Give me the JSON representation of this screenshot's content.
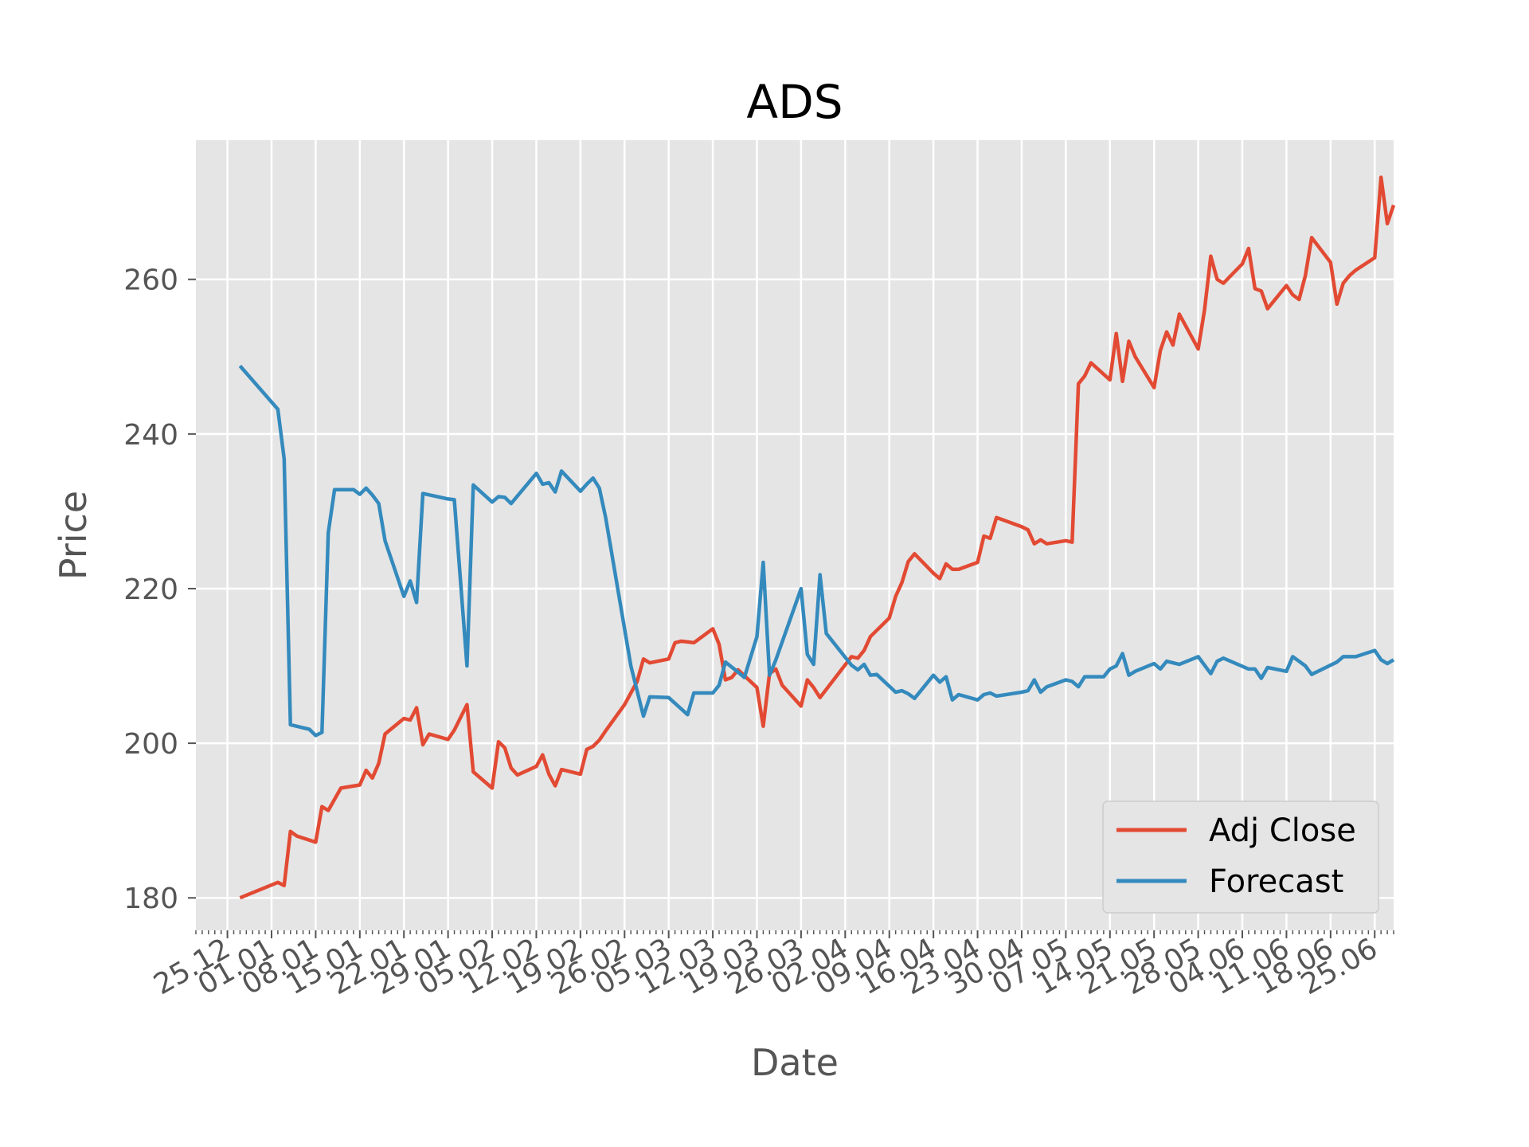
{
  "chart_data": {
    "type": "line",
    "title": "ADS",
    "xlabel": "Date",
    "ylabel": "Price",
    "xlim": [
      "2017-12-20",
      "2018-06-28"
    ],
    "ylim": [
      175.8,
      278.0
    ],
    "x_ticks": [
      "2017-12-25",
      "2018-01-01",
      "2018-01-08",
      "2018-01-15",
      "2018-01-22",
      "2018-01-29",
      "2018-02-05",
      "2018-02-12",
      "2018-02-19",
      "2018-02-26",
      "2018-03-05",
      "2018-03-12",
      "2018-03-19",
      "2018-03-26",
      "2018-04-02",
      "2018-04-09",
      "2018-04-16",
      "2018-04-23",
      "2018-04-30",
      "2018-05-07",
      "2018-05-14",
      "2018-05-21",
      "2018-05-28",
      "2018-06-04",
      "2018-06-11",
      "2018-06-18",
      "2018-06-25"
    ],
    "x_tick_labels": [
      "25.12",
      "01.01",
      "08.01",
      "15.01",
      "22.01",
      "29.01",
      "05.02",
      "12.02",
      "19.02",
      "26.02",
      "05.03",
      "12.03",
      "19.03",
      "26.03",
      "02.04",
      "09.04",
      "16.04",
      "23.04",
      "30.04",
      "07.05",
      "14.05",
      "21.05",
      "28.05",
      "04.06",
      "11.06",
      "18.06",
      "25.06"
    ],
    "y_ticks": [
      180,
      200,
      220,
      240,
      260
    ],
    "grid": true,
    "legend_position": "lower right",
    "series": [
      {
        "name": "Adj Close",
        "color": "#E24A33",
        "points": [
          [
            "2017-12-27",
            180.0
          ],
          [
            "2018-01-02",
            182.0
          ],
          [
            "2018-01-03",
            181.6
          ],
          [
            "2018-01-04",
            188.6
          ],
          [
            "2018-01-05",
            188.0
          ],
          [
            "2018-01-08",
            187.2
          ],
          [
            "2018-01-09",
            191.8
          ],
          [
            "2018-01-10",
            191.3
          ],
          [
            "2018-01-12",
            194.2
          ],
          [
            "2018-01-15",
            194.6
          ],
          [
            "2018-01-16",
            196.5
          ],
          [
            "2018-01-17",
            195.5
          ],
          [
            "2018-01-18",
            197.4
          ],
          [
            "2018-01-19",
            201.2
          ],
          [
            "2018-01-22",
            203.2
          ],
          [
            "2018-01-23",
            203.0
          ],
          [
            "2018-01-24",
            204.6
          ],
          [
            "2018-01-25",
            199.8
          ],
          [
            "2018-01-26",
            201.2
          ],
          [
            "2018-01-29",
            200.5
          ],
          [
            "2018-01-30",
            201.7
          ],
          [
            "2018-02-01",
            205.0
          ],
          [
            "2018-02-02",
            196.3
          ],
          [
            "2018-02-05",
            194.2
          ],
          [
            "2018-02-06",
            200.2
          ],
          [
            "2018-02-07",
            199.4
          ],
          [
            "2018-02-08",
            196.8
          ],
          [
            "2018-02-09",
            195.9
          ],
          [
            "2018-02-12",
            197.0
          ],
          [
            "2018-02-13",
            198.5
          ],
          [
            "2018-02-14",
            196.0
          ],
          [
            "2018-02-15",
            194.5
          ],
          [
            "2018-02-16",
            196.6
          ],
          [
            "2018-02-19",
            196.0
          ],
          [
            "2018-02-20",
            199.2
          ],
          [
            "2018-02-21",
            199.6
          ],
          [
            "2018-02-22",
            200.4
          ],
          [
            "2018-02-23",
            201.6
          ],
          [
            "2018-02-26",
            205.0
          ],
          [
            "2018-02-28",
            208.0
          ],
          [
            "2018-03-01",
            210.9
          ],
          [
            "2018-03-02",
            210.4
          ],
          [
            "2018-03-05",
            210.9
          ],
          [
            "2018-03-06",
            213.0
          ],
          [
            "2018-03-07",
            213.2
          ],
          [
            "2018-03-08",
            213.1
          ],
          [
            "2018-03-09",
            213.0
          ],
          [
            "2018-03-12",
            214.8
          ],
          [
            "2018-03-13",
            212.8
          ],
          [
            "2018-03-14",
            208.2
          ],
          [
            "2018-03-15",
            208.5
          ],
          [
            "2018-03-16",
            209.5
          ],
          [
            "2018-03-19",
            207.2
          ],
          [
            "2018-03-20",
            202.2
          ],
          [
            "2018-03-21",
            209.0
          ],
          [
            "2018-03-22",
            209.6
          ],
          [
            "2018-03-23",
            207.5
          ],
          [
            "2018-03-26",
            204.8
          ],
          [
            "2018-03-27",
            208.2
          ],
          [
            "2018-03-28",
            207.2
          ],
          [
            "2018-03-29",
            205.9
          ],
          [
            "2018-04-03",
            211.2
          ],
          [
            "2018-04-04",
            211.0
          ],
          [
            "2018-04-05",
            212.0
          ],
          [
            "2018-04-06",
            213.8
          ],
          [
            "2018-04-09",
            216.2
          ],
          [
            "2018-04-10",
            219.0
          ],
          [
            "2018-04-11",
            220.8
          ],
          [
            "2018-04-12",
            223.5
          ],
          [
            "2018-04-13",
            224.5
          ],
          [
            "2018-04-16",
            222.0
          ],
          [
            "2018-04-17",
            221.3
          ],
          [
            "2018-04-18",
            223.2
          ],
          [
            "2018-04-19",
            222.5
          ],
          [
            "2018-04-20",
            222.5
          ],
          [
            "2018-04-23",
            223.4
          ],
          [
            "2018-04-24",
            226.8
          ],
          [
            "2018-04-25",
            226.5
          ],
          [
            "2018-04-26",
            229.2
          ],
          [
            "2018-04-30",
            228.0
          ],
          [
            "2018-05-01",
            227.6
          ],
          [
            "2018-05-02",
            225.8
          ],
          [
            "2018-05-03",
            226.3
          ],
          [
            "2018-05-04",
            225.8
          ],
          [
            "2018-05-07",
            226.2
          ],
          [
            "2018-05-08",
            226.0
          ],
          [
            "2018-05-09",
            246.5
          ],
          [
            "2018-05-10",
            247.5
          ],
          [
            "2018-05-11",
            249.2
          ],
          [
            "2018-05-14",
            247.0
          ],
          [
            "2018-05-15",
            253.0
          ],
          [
            "2018-05-16",
            246.8
          ],
          [
            "2018-05-17",
            252.0
          ],
          [
            "2018-05-18",
            250.0
          ],
          [
            "2018-05-21",
            246.0
          ],
          [
            "2018-05-22",
            250.8
          ],
          [
            "2018-05-23",
            253.2
          ],
          [
            "2018-05-24",
            251.5
          ],
          [
            "2018-05-25",
            255.5
          ],
          [
            "2018-05-28",
            251.0
          ],
          [
            "2018-05-29",
            256.0
          ],
          [
            "2018-05-30",
            263.0
          ],
          [
            "2018-05-31",
            260.0
          ],
          [
            "2018-06-01",
            259.5
          ],
          [
            "2018-06-04",
            262.0
          ],
          [
            "2018-06-05",
            264.0
          ],
          [
            "2018-06-06",
            258.8
          ],
          [
            "2018-06-07",
            258.5
          ],
          [
            "2018-06-08",
            256.2
          ],
          [
            "2018-06-11",
            259.2
          ],
          [
            "2018-06-12",
            258.0
          ],
          [
            "2018-06-13",
            257.4
          ],
          [
            "2018-06-14",
            260.5
          ],
          [
            "2018-06-15",
            265.4
          ],
          [
            "2018-06-18",
            262.2
          ],
          [
            "2018-06-19",
            256.8
          ],
          [
            "2018-06-20",
            259.5
          ],
          [
            "2018-06-21",
            260.5
          ],
          [
            "2018-06-22",
            261.2
          ],
          [
            "2018-06-25",
            262.8
          ],
          [
            "2018-06-26",
            273.2
          ],
          [
            "2018-06-27",
            267.2
          ],
          [
            "2018-06-28",
            269.6
          ]
        ]
      },
      {
        "name": "Forecast",
        "color": "#348ABD",
        "points": [
          [
            "2017-12-27",
            248.8
          ],
          [
            "2018-01-02",
            243.2
          ],
          [
            "2018-01-03",
            236.8
          ],
          [
            "2018-01-04",
            202.4
          ],
          [
            "2018-01-07",
            201.8
          ],
          [
            "2018-01-08",
            201.0
          ],
          [
            "2018-01-09",
            201.4
          ],
          [
            "2018-01-10",
            227.2
          ],
          [
            "2018-01-11",
            232.8
          ],
          [
            "2018-01-14",
            232.8
          ],
          [
            "2018-01-15",
            232.2
          ],
          [
            "2018-01-16",
            233.0
          ],
          [
            "2018-01-17",
            232.1
          ],
          [
            "2018-01-18",
            231.0
          ],
          [
            "2018-01-19",
            226.2
          ],
          [
            "2018-01-22",
            219.0
          ],
          [
            "2018-01-23",
            221.0
          ],
          [
            "2018-01-24",
            218.2
          ],
          [
            "2018-01-25",
            232.3
          ],
          [
            "2018-01-29",
            231.6
          ],
          [
            "2018-01-30",
            231.5
          ],
          [
            "2018-02-01",
            210.0
          ],
          [
            "2018-02-02",
            233.4
          ],
          [
            "2018-02-05",
            231.2
          ],
          [
            "2018-02-06",
            231.9
          ],
          [
            "2018-02-07",
            231.8
          ],
          [
            "2018-02-08",
            231.0
          ],
          [
            "2018-02-12",
            234.9
          ],
          [
            "2018-02-13",
            233.5
          ],
          [
            "2018-02-14",
            233.7
          ],
          [
            "2018-02-15",
            232.5
          ],
          [
            "2018-02-16",
            235.2
          ],
          [
            "2018-02-19",
            232.6
          ],
          [
            "2018-02-20",
            233.5
          ],
          [
            "2018-02-21",
            234.3
          ],
          [
            "2018-02-22",
            233.0
          ],
          [
            "2018-02-23",
            229.2
          ],
          [
            "2018-02-27",
            210.0
          ],
          [
            "2018-03-01",
            203.5
          ],
          [
            "2018-03-02",
            206.0
          ],
          [
            "2018-03-05",
            205.9
          ],
          [
            "2018-03-08",
            203.7
          ],
          [
            "2018-03-09",
            206.5
          ],
          [
            "2018-03-12",
            206.5
          ],
          [
            "2018-03-13",
            207.5
          ],
          [
            "2018-03-14",
            210.5
          ],
          [
            "2018-03-16",
            209.2
          ],
          [
            "2018-03-17",
            208.5
          ],
          [
            "2018-03-19",
            213.8
          ],
          [
            "2018-03-20",
            223.4
          ],
          [
            "2018-03-21",
            208.8
          ],
          [
            "2018-03-22",
            210.8
          ],
          [
            "2018-03-26",
            220.0
          ],
          [
            "2018-03-27",
            211.5
          ],
          [
            "2018-03-28",
            210.2
          ],
          [
            "2018-03-29",
            221.8
          ],
          [
            "2018-03-30",
            214.2
          ],
          [
            "2018-04-03",
            210.1
          ],
          [
            "2018-04-04",
            209.5
          ],
          [
            "2018-04-05",
            210.2
          ],
          [
            "2018-04-06",
            208.8
          ],
          [
            "2018-04-07",
            208.9
          ],
          [
            "2018-04-10",
            206.6
          ],
          [
            "2018-04-11",
            206.8
          ],
          [
            "2018-04-12",
            206.4
          ],
          [
            "2018-04-13",
            205.8
          ],
          [
            "2018-04-16",
            208.8
          ],
          [
            "2018-04-17",
            207.9
          ],
          [
            "2018-04-18",
            208.6
          ],
          [
            "2018-04-19",
            205.6
          ],
          [
            "2018-04-20",
            206.3
          ],
          [
            "2018-04-23",
            205.6
          ],
          [
            "2018-04-24",
            206.3
          ],
          [
            "2018-04-25",
            206.5
          ],
          [
            "2018-04-26",
            206.1
          ],
          [
            "2018-04-30",
            206.6
          ],
          [
            "2018-05-01",
            206.8
          ],
          [
            "2018-05-02",
            208.2
          ],
          [
            "2018-05-03",
            206.6
          ],
          [
            "2018-05-04",
            207.3
          ],
          [
            "2018-05-07",
            208.2
          ],
          [
            "2018-05-08",
            208.0
          ],
          [
            "2018-05-09",
            207.3
          ],
          [
            "2018-05-10",
            208.6
          ],
          [
            "2018-05-13",
            208.6
          ],
          [
            "2018-05-14",
            209.6
          ],
          [
            "2018-05-15",
            210.0
          ],
          [
            "2018-05-16",
            211.6
          ],
          [
            "2018-05-17",
            208.8
          ],
          [
            "2018-05-18",
            209.3
          ],
          [
            "2018-05-21",
            210.3
          ],
          [
            "2018-05-22",
            209.6
          ],
          [
            "2018-05-23",
            210.6
          ],
          [
            "2018-05-25",
            210.2
          ],
          [
            "2018-05-28",
            211.2
          ],
          [
            "2018-05-30",
            209.0
          ],
          [
            "2018-05-31",
            210.6
          ],
          [
            "2018-06-01",
            211.0
          ],
          [
            "2018-06-05",
            209.6
          ],
          [
            "2018-06-06",
            209.6
          ],
          [
            "2018-06-07",
            208.4
          ],
          [
            "2018-06-08",
            209.8
          ],
          [
            "2018-06-11",
            209.3
          ],
          [
            "2018-06-12",
            211.2
          ],
          [
            "2018-06-13",
            210.6
          ],
          [
            "2018-06-14",
            210.0
          ],
          [
            "2018-06-15",
            208.9
          ],
          [
            "2018-06-19",
            210.5
          ],
          [
            "2018-06-20",
            211.2
          ],
          [
            "2018-06-22",
            211.2
          ],
          [
            "2018-06-25",
            212.0
          ],
          [
            "2018-06-26",
            210.8
          ],
          [
            "2018-06-27",
            210.3
          ],
          [
            "2018-06-28",
            210.8
          ]
        ]
      }
    ]
  }
}
